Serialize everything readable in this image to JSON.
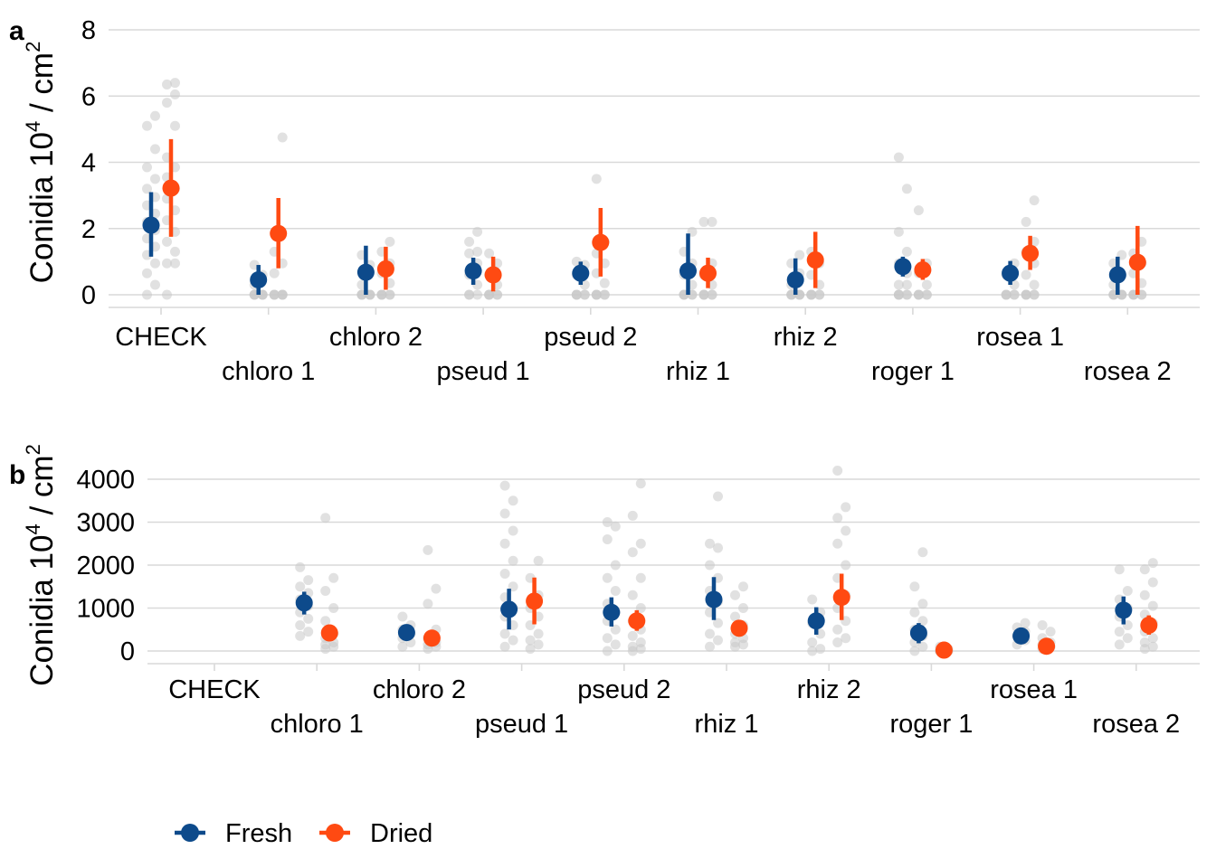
{
  "colors": {
    "fresh": "#0D4A8B",
    "dried": "#FF4A12",
    "raw": "#C8C8C8",
    "grid": "#D9D9D9"
  },
  "legend": {
    "placement": "bottom-left",
    "items": [
      "Fresh",
      "Dried"
    ]
  },
  "chart_data": [
    {
      "panel": "a",
      "type": "scatter",
      "ylabel_main": "Conidia 10",
      "ylabel_exp": "4",
      "ylabel_unit": " / cm",
      "ylabel_unit_exp": "2",
      "ylim": [
        0,
        8
      ],
      "yticks": [
        0,
        2,
        4,
        6,
        8
      ],
      "grid": true,
      "categories": [
        "CHECK",
        "chloro 1",
        "chloro 2",
        "pseud 1",
        "pseud 2",
        "rhiz 1",
        "rhiz 2",
        "roger 1",
        "rosea 1",
        "rosea 2"
      ],
      "series": [
        {
          "name": "Fresh",
          "means": [
            2.1,
            0.45,
            0.68,
            0.72,
            0.65,
            0.72,
            0.45,
            0.85,
            0.65,
            0.6
          ],
          "lower": [
            1.15,
            0.0,
            0.0,
            0.3,
            0.3,
            0.0,
            0.0,
            0.55,
            0.3,
            0.0
          ],
          "upper": [
            3.1,
            0.9,
            1.48,
            1.12,
            1.0,
            1.85,
            1.1,
            1.15,
            1.02,
            1.15
          ],
          "raw": [
            [
              0,
              0.3,
              0.65,
              0.95,
              1.2,
              1.45,
              1.7,
              1.95,
              2.2,
              2.45,
              2.7,
              2.95,
              3.2,
              3.5,
              3.85,
              4.4,
              5.1,
              5.4
            ],
            [
              0,
              0,
              0,
              0,
              0,
              0,
              0.3,
              0.6,
              0.9
            ],
            [
              0,
              0,
              0,
              0,
              0,
              0,
              0.3,
              0.9,
              1.2
            ],
            [
              0,
              0,
              0,
              0.3,
              0.6,
              0.95,
              1.25,
              1.3,
              1.6,
              1.9
            ],
            [
              0,
              0,
              0,
              0,
              0,
              0.3,
              0.6,
              0.9,
              1.0
            ],
            [
              0,
              0,
              0,
              0,
              0,
              0.3,
              0.6,
              0.95,
              1.3,
              1.9
            ],
            [
              0,
              0,
              0,
              0,
              0,
              0,
              0.3,
              0.65,
              0.95,
              1.2
            ],
            [
              0,
              0,
              0,
              0,
              0,
              0.3,
              0.3,
              0.65,
              0.95,
              1.3,
              1.9,
              3.2,
              4.15
            ],
            [
              0,
              0,
              0,
              0,
              0,
              0.3,
              0.6,
              0.95
            ],
            [
              0,
              0,
              0,
              0,
              0,
              0,
              0.3,
              0.6,
              0.95,
              1.2
            ]
          ]
        },
        {
          "name": "Dried",
          "means": [
            3.22,
            1.85,
            0.78,
            0.6,
            1.58,
            0.65,
            1.05,
            0.75,
            1.25,
            0.98
          ],
          "lower": [
            1.75,
            0.8,
            0.15,
            0.1,
            0.55,
            0.2,
            0.2,
            0.45,
            0.75,
            0.0
          ],
          "upper": [
            4.7,
            2.92,
            1.45,
            1.15,
            2.62,
            1.12,
            1.9,
            1.08,
            1.78,
            2.08
          ],
          "raw": [
            [
              0,
              0.95,
              0.95,
              1.3,
              1.6,
              1.9,
              2.25,
              2.55,
              2.9,
              3.2,
              3.55,
              3.85,
              4.15,
              5.1,
              5.8,
              6.05,
              6.35,
              6.4
            ],
            [
              0,
              0,
              0,
              0,
              0,
              0,
              0.65,
              0.95,
              1.3,
              4.75
            ],
            [
              0,
              0,
              0,
              0,
              0,
              0.35,
              0.65,
              0.95,
              1.3,
              1.6
            ],
            [
              0,
              0,
              0,
              0,
              0,
              0.3,
              0.6,
              0.95,
              1.25
            ],
            [
              0,
              0,
              0,
              0,
              0,
              0.35,
              0.65,
              0.95,
              1.25,
              1.6,
              3.5
            ],
            [
              0,
              0,
              0,
              0,
              0,
              0.3,
              0.6,
              0.95,
              2.2,
              2.2
            ],
            [
              0,
              0,
              0,
              0,
              0,
              0.3,
              0.6,
              0.95,
              1.3
            ],
            [
              0,
              0,
              0,
              0,
              0,
              0.3,
              0.65,
              0.95,
              2.55
            ],
            [
              0,
              0,
              0,
              0,
              0,
              0.3,
              0.6,
              0.95,
              1.3,
              1.6,
              2.2,
              2.85
            ],
            [
              0,
              0,
              0,
              0,
              0,
              0.35,
              0.65,
              0.95,
              1.25,
              1.6
            ]
          ]
        }
      ]
    },
    {
      "panel": "b",
      "type": "scatter",
      "ylabel_main": "Conidia 10",
      "ylabel_exp": "4",
      "ylabel_unit": " / cm",
      "ylabel_unit_exp": "2",
      "ylim": [
        0,
        4000
      ],
      "yticks": [
        0,
        1000,
        2000,
        3000,
        4000
      ],
      "grid": true,
      "categories": [
        "CHECK",
        "chloro 1",
        "chloro 2",
        "pseud 1",
        "pseud 2",
        "rhiz 1",
        "rhiz 2",
        "roger 1",
        "rosea 1",
        "rosea 2"
      ],
      "series": [
        {
          "name": "Fresh",
          "means": [
            null,
            1120,
            430,
            970,
            900,
            1200,
            700,
            420,
            350,
            950
          ],
          "lower": [
            null,
            850,
            300,
            500,
            570,
            720,
            380,
            180,
            200,
            620
          ],
          "upper": [
            null,
            1380,
            560,
            1450,
            1250,
            1720,
            1020,
            650,
            500,
            1270
          ],
          "raw": [
            [],
            [
              350,
              450,
              600,
              750,
              900,
              1050,
              1200,
              1350,
              1500,
              1650,
              1950
            ],
            [
              100,
              200,
              300,
              400,
              500,
              600,
              800
            ],
            [
              100,
              250,
              400,
              600,
              800,
              1000,
              1250,
              1500,
              1800,
              2100,
              2500,
              2800,
              3200,
              3500,
              3850
            ],
            [
              0,
              150,
              300,
              500,
              700,
              900,
              1100,
              1400,
              1700,
              2000,
              2600,
              2900,
              3000
            ],
            [
              100,
              250,
              400,
              650,
              900,
              1150,
              1400,
              1700,
              2000,
              2400,
              2500,
              3600
            ],
            [
              0,
              50,
              200,
              400,
              650,
              900,
              1200
            ],
            [
              0,
              100,
              200,
              350,
              500,
              700,
              900,
              1100,
              1500,
              2300
            ],
            [
              150,
              250,
              350,
              450,
              550,
              650
            ],
            [
              150,
              300,
              450,
              600,
              800,
              1000,
              1200,
              1400,
              1900
            ]
          ]
        },
        {
          "name": "Dried",
          "means": [
            null,
            420,
            300,
            1160,
            700,
            530,
            1250,
            20,
            110,
            600
          ],
          "lower": [
            null,
            350,
            180,
            620,
            470,
            400,
            720,
            0,
            0,
            380
          ],
          "upper": [
            null,
            500,
            400,
            1710,
            950,
            680,
            1800,
            60,
            220,
            830
          ],
          "raw": [
            [],
            [
              50,
              100,
              150,
              200,
              300,
              400,
              700,
              1000,
              1400,
              1700,
              3100
            ],
            [
              50,
              100,
              150,
              200,
              300,
              500,
              1100,
              1450,
              2350
            ],
            [
              50,
              150,
              250,
              400,
              600,
              800,
              1000,
              1300,
              1700,
              2100
            ],
            [
              0,
              50,
              100,
              200,
              350,
              500,
              700,
              1000,
              1300,
              1700,
              2300,
              2500,
              3150,
              3900
            ],
            [
              100,
              150,
              200,
              300,
              400,
              600,
              800,
              1000,
              1300,
              1500
            ],
            [
              200,
              300,
              500,
              700,
              1000,
              1300,
              1700,
              2000,
              2500,
              2800,
              3100,
              3350,
              4200
            ],
            [
              0,
              0,
              0,
              0,
              0,
              50,
              100
            ],
            [
              50,
              100,
              150,
              200,
              300,
              450,
              600
            ],
            [
              50,
              100,
              200,
              300,
              450,
              650,
              850,
              1050,
              1300,
              1600,
              1900,
              2050
            ]
          ]
        }
      ]
    }
  ]
}
